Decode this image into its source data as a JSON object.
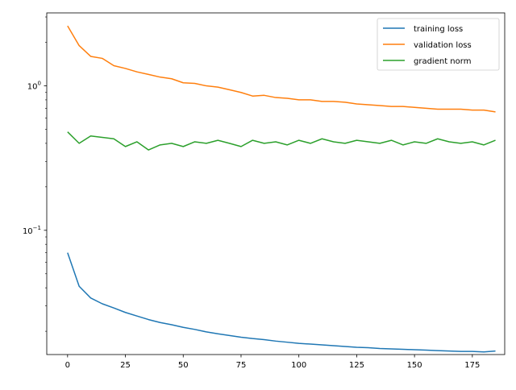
{
  "chart_data": {
    "type": "line",
    "title": "",
    "xlabel": "",
    "ylabel": "",
    "y_scale": "log",
    "xlim": [
      -9,
      189
    ],
    "ylim": [
      0.0138,
      3.2
    ],
    "x_ticks": [
      0,
      25,
      50,
      75,
      100,
      125,
      150,
      175
    ],
    "x_tick_labels": [
      "0",
      "25",
      "50",
      "75",
      "100",
      "125",
      "150",
      "175"
    ],
    "y_major_ticks": [
      0.1,
      1
    ],
    "y_minor_ticks": [
      0.02,
      0.03,
      0.04,
      0.05,
      0.06,
      0.07,
      0.08,
      0.09,
      0.2,
      0.3,
      0.4,
      0.5,
      0.6,
      0.7,
      0.8,
      0.9,
      2,
      3
    ],
    "grid": false,
    "legend_position": "top-right",
    "series": [
      {
        "name": "training loss",
        "color": "#1f77b4",
        "x_start": 0,
        "x_step": 5,
        "values": [
          0.07,
          0.041,
          0.034,
          0.031,
          0.029,
          0.027,
          0.0255,
          0.0241,
          0.023,
          0.0222,
          0.0213,
          0.0206,
          0.0198,
          0.0192,
          0.0187,
          0.0182,
          0.0178,
          0.0175,
          0.0171,
          0.0168,
          0.0165,
          0.0163,
          0.0161,
          0.0159,
          0.0157,
          0.0155,
          0.0154,
          0.0152,
          0.0151,
          0.015,
          0.0149,
          0.0148,
          0.0147,
          0.0146,
          0.0145,
          0.0145,
          0.0144,
          0.0146
        ]
      },
      {
        "name": "validation loss",
        "color": "#ff7f0e",
        "x_start": 0,
        "x_step": 5,
        "values": [
          2.6,
          1.9,
          1.6,
          1.55,
          1.38,
          1.32,
          1.25,
          1.2,
          1.15,
          1.12,
          1.05,
          1.04,
          1.0,
          0.98,
          0.94,
          0.9,
          0.85,
          0.86,
          0.83,
          0.82,
          0.8,
          0.8,
          0.78,
          0.78,
          0.77,
          0.75,
          0.74,
          0.73,
          0.72,
          0.72,
          0.71,
          0.7,
          0.69,
          0.69,
          0.69,
          0.68,
          0.68,
          0.66
        ]
      },
      {
        "name": "gradient norm",
        "color": "#2ca02c",
        "x_start": 0,
        "x_step": 5,
        "values": [
          0.48,
          0.4,
          0.45,
          0.44,
          0.43,
          0.38,
          0.41,
          0.36,
          0.39,
          0.4,
          0.38,
          0.41,
          0.4,
          0.42,
          0.4,
          0.38,
          0.42,
          0.4,
          0.41,
          0.39,
          0.42,
          0.4,
          0.43,
          0.41,
          0.4,
          0.42,
          0.41,
          0.4,
          0.42,
          0.39,
          0.41,
          0.4,
          0.43,
          0.41,
          0.4,
          0.41,
          0.39,
          0.42
        ]
      }
    ]
  }
}
